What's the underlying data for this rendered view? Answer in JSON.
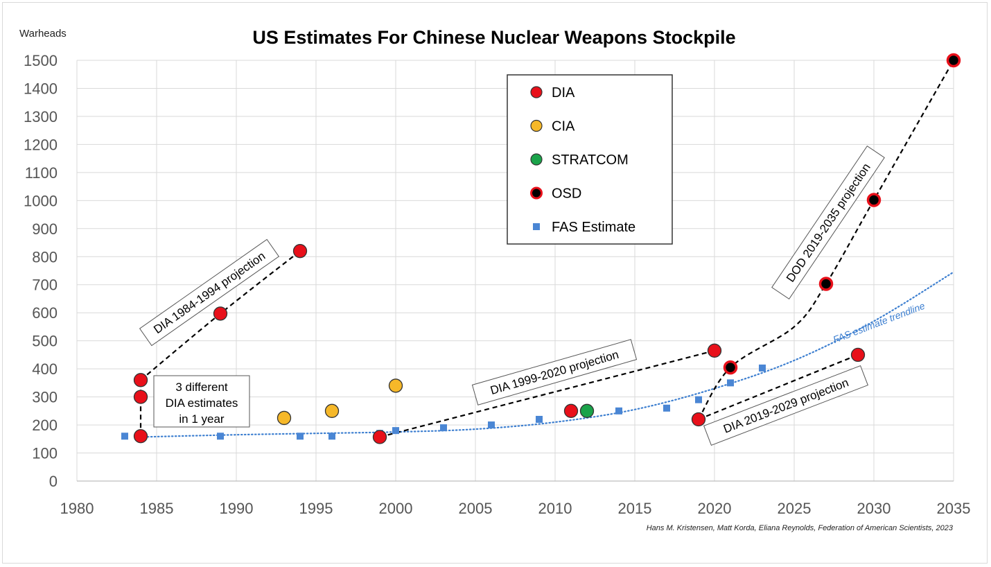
{
  "chart_data": {
    "type": "scatter",
    "title": "US Estimates For Chinese Nuclear Weapons Stockpile",
    "ylabel": "Warheads",
    "xlabel": "",
    "xlim": [
      1980,
      2035
    ],
    "ylim": [
      0,
      1500
    ],
    "x_ticks": [
      1980,
      1985,
      1990,
      1995,
      2000,
      2005,
      2010,
      2015,
      2020,
      2025,
      2030,
      2035
    ],
    "y_ticks": [
      0,
      100,
      200,
      300,
      400,
      500,
      600,
      700,
      800,
      900,
      1000,
      1100,
      1200,
      1300,
      1400,
      1500
    ],
    "grid": true,
    "credit": "Hans M. Kristensen, Matt Korda, Eliana Reynolds, Federation of American Scientists, 2023",
    "legend": [
      {
        "name": "DIA",
        "marker": "circle",
        "color": "#e8101a"
      },
      {
        "name": "CIA",
        "marker": "circle",
        "color": "#f6b829"
      },
      {
        "name": "STRATCOM",
        "marker": "circle",
        "color": "#1aa34a"
      },
      {
        "name": "OSD",
        "marker": "circle",
        "color": "#000000",
        "edge": "#e8101a"
      },
      {
        "name": "FAS Estimate",
        "marker": "square",
        "color": "#4a86d4"
      }
    ],
    "series": [
      {
        "name": "DIA",
        "points": [
          [
            1984,
            160
          ],
          [
            1984,
            300
          ],
          [
            1984,
            360
          ],
          [
            1989,
            597
          ],
          [
            1994,
            820
          ],
          [
            1999,
            157
          ],
          [
            2011,
            250
          ],
          [
            2019,
            220
          ],
          [
            2020,
            465
          ],
          [
            2029,
            450
          ]
        ]
      },
      {
        "name": "CIA",
        "points": [
          [
            1993,
            225
          ],
          [
            1996,
            250
          ],
          [
            2000,
            340
          ]
        ]
      },
      {
        "name": "STRATCOM",
        "points": [
          [
            2012,
            250
          ]
        ]
      },
      {
        "name": "OSD",
        "points": [
          [
            2021,
            405
          ],
          [
            2027,
            703
          ],
          [
            2030,
            1002
          ],
          [
            2035,
            1500
          ]
        ]
      },
      {
        "name": "FAS Estimate",
        "points": [
          [
            1983,
            160
          ],
          [
            1984,
            160
          ],
          [
            1989,
            160
          ],
          [
            1994,
            160
          ],
          [
            1996,
            160
          ],
          [
            1999,
            170
          ],
          [
            2000,
            180
          ],
          [
            2003,
            190
          ],
          [
            2006,
            200
          ],
          [
            2009,
            220
          ],
          [
            2014,
            250
          ],
          [
            2017,
            260
          ],
          [
            2019,
            290
          ],
          [
            2021,
            350
          ],
          [
            2023,
            403
          ]
        ]
      }
    ],
    "projections": [
      {
        "points": [
          [
            1984,
            160
          ],
          [
            1984,
            360
          ]
        ]
      },
      {
        "points": [
          [
            1984,
            360
          ],
          [
            1989,
            597
          ],
          [
            1994,
            820
          ]
        ]
      },
      {
        "points": [
          [
            1999,
            157
          ],
          [
            2020,
            465
          ]
        ]
      },
      {
        "points": [
          [
            2019,
            220
          ],
          [
            2029,
            450
          ]
        ]
      },
      {
        "points": [
          [
            2019,
            220
          ],
          [
            2021,
            405
          ],
          [
            2025,
            550
          ],
          [
            2027,
            703
          ],
          [
            2030,
            1002
          ],
          [
            2035,
            1500
          ]
        ]
      }
    ],
    "trendline": {
      "name": "FAS estimate trendline",
      "points": [
        [
          1984,
          157
        ],
        [
          1990,
          165
        ],
        [
          1995,
          170
        ],
        [
          2000,
          175
        ],
        [
          2005,
          185
        ],
        [
          2010,
          210
        ],
        [
          2015,
          255
        ],
        [
          2020,
          330
        ],
        [
          2025,
          430
        ],
        [
          2030,
          570
        ],
        [
          2035,
          745
        ]
      ]
    },
    "annotations": [
      {
        "id": "dia-1984-1994",
        "text": "DIA 1984-1994 projection"
      },
      {
        "id": "three-estimates",
        "lines": [
          "3 different",
          "DIA estimates",
          "in 1 year"
        ]
      },
      {
        "id": "dia-1999-2020",
        "text": "DIA 1999-2020 projection"
      },
      {
        "id": "dia-2019-2029",
        "text": "DIA 2019-2029 projection"
      },
      {
        "id": "dod-2019-2035",
        "text": "DOD 2019-2035 projection"
      }
    ]
  }
}
